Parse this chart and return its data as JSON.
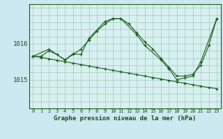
{
  "title": "Graphe pression niveau de la mer (hPa)",
  "bg_color": "#cce8f0",
  "plot_bg_color": "#d8f0f0",
  "line_color": "#1a5c1a",
  "grid_color": "#99ccbb",
  "xlim": [
    -0.5,
    23.5
  ],
  "ylim": [
    1014.2,
    1017.1
  ],
  "yticks": [
    1015,
    1016
  ],
  "xticks": [
    0,
    1,
    2,
    3,
    4,
    5,
    6,
    7,
    8,
    9,
    10,
    11,
    12,
    13,
    14,
    15,
    16,
    17,
    18,
    19,
    20,
    21,
    22,
    23
  ],
  "hgrid_vals": [
    1014.2,
    1014.4,
    1014.6,
    1014.8,
    1015.0,
    1015.2,
    1015.4,
    1015.6,
    1015.8,
    1016.0,
    1016.2,
    1016.4,
    1016.6,
    1016.8,
    1017.0
  ],
  "series": [
    {
      "x": [
        0,
        1,
        2,
        3,
        4,
        5,
        6,
        7,
        8,
        9,
        10,
        11,
        12,
        13,
        14,
        15,
        16,
        17,
        18,
        19,
        20,
        21,
        22,
        23
      ],
      "y": [
        1015.65,
        1015.65,
        1015.8,
        1015.7,
        1015.55,
        1015.7,
        1015.85,
        1016.1,
        1016.35,
        1016.55,
        1016.7,
        1016.7,
        1016.55,
        1016.3,
        1016.05,
        1015.85,
        1015.6,
        1015.35,
        1015.1,
        1015.1,
        1015.15,
        1015.4,
        1015.95,
        1016.7
      ]
    },
    {
      "x": [
        0,
        1,
        2,
        3,
        4,
        5,
        6,
        7,
        8,
        9,
        10,
        11,
        12,
        13,
        14,
        15,
        16,
        17,
        18,
        19,
        20,
        21,
        22,
        23
      ],
      "y": [
        1015.65,
        1015.62,
        1015.58,
        1015.54,
        1015.5,
        1015.46,
        1015.42,
        1015.38,
        1015.34,
        1015.3,
        1015.26,
        1015.22,
        1015.18,
        1015.14,
        1015.1,
        1015.06,
        1015.02,
        1014.98,
        1014.94,
        1014.9,
        1014.86,
        1014.82,
        1014.78,
        1014.75
      ]
    },
    {
      "x": [
        0,
        2,
        4,
        5,
        6,
        7,
        9,
        10,
        11,
        13,
        14,
        16,
        17,
        18,
        19,
        20,
        21,
        23
      ],
      "y": [
        1015.65,
        1015.85,
        1015.55,
        1015.72,
        1015.7,
        1016.15,
        1016.62,
        1016.7,
        1016.7,
        1016.25,
        1015.95,
        1015.55,
        1015.3,
        1015.0,
        1015.05,
        1015.1,
        1015.5,
        1016.7
      ]
    }
  ]
}
